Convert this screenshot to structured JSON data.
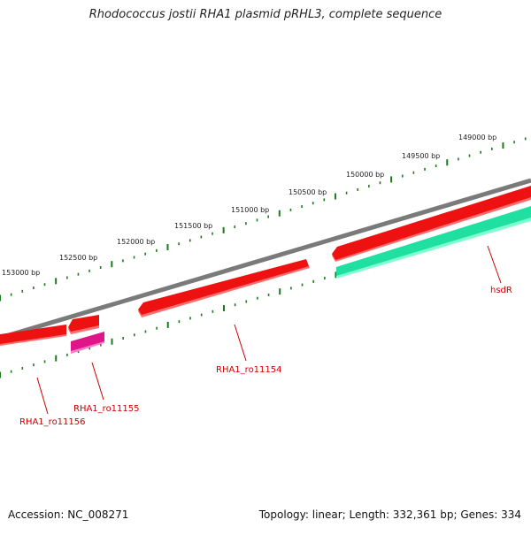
{
  "title": "Rhodococcus jostii RHA1 plasmid pRHL3, complete sequence",
  "footer": {
    "accession": "Accession: NC_008271",
    "summary": "Topology: linear; Length: 332,361 bp; Genes: 334"
  },
  "colors": {
    "backbone": "#808080",
    "gene_red": "#ee1111",
    "gene_magenta": "#e0158a",
    "gene_green": "#1fe0a0",
    "tick": "#1c7a1c",
    "label_red": "#cc0000"
  },
  "tick_labels": [
    "149000 bp",
    "149500 bp",
    "150000 bp",
    "150500 bp",
    "151000 bp",
    "151500 bp",
    "152000 bp",
    "152500 bp",
    "153000 bp"
  ],
  "genes": [
    {
      "name": "hsdR",
      "color": "green"
    },
    {
      "name": "RHA1_ro11154",
      "color": "red"
    },
    {
      "name": "RHA1_ro11155",
      "color": "magenta"
    },
    {
      "name": "RHA1_ro11156",
      "color": "red"
    }
  ]
}
